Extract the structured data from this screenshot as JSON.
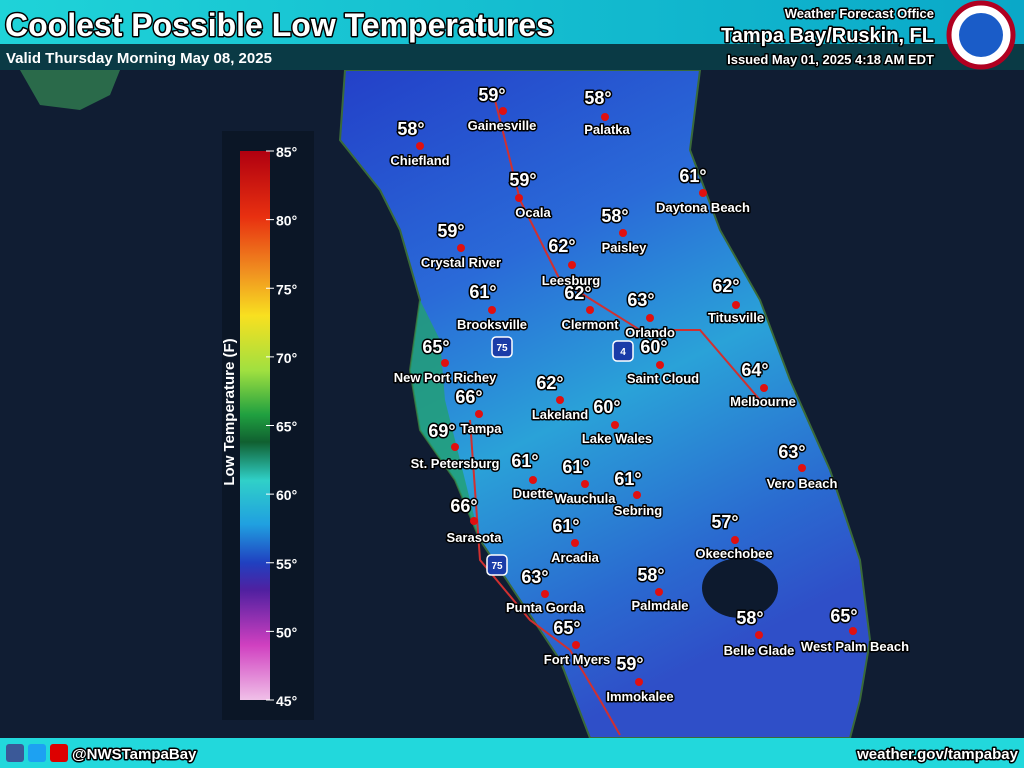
{
  "header": {
    "title": "Coolest Possible Low Temperatures",
    "valid": "Valid Thursday Morning May 08, 2025",
    "office": "Weather Forecast Office",
    "location": "Tampa Bay/Ruskin, FL",
    "issued": "Issued May 01, 2025 4:18 AM EDT"
  },
  "legend": {
    "title": "Low Temperature (F)",
    "ticks": [
      "85°",
      "80°",
      "75°",
      "70°",
      "65°",
      "60°",
      "55°",
      "50°",
      "45°"
    ]
  },
  "cities": [
    {
      "name": "Gainesville",
      "temp": "59°"
    },
    {
      "name": "Palatka",
      "temp": "58°"
    },
    {
      "name": "Chiefland",
      "temp": "58°"
    },
    {
      "name": "Ocala",
      "temp": "59°"
    },
    {
      "name": "Daytona Beach",
      "temp": "61°"
    },
    {
      "name": "Paisley",
      "temp": "58°"
    },
    {
      "name": "Crystal River",
      "temp": "59°"
    },
    {
      "name": "Leesburg",
      "temp": "62°"
    },
    {
      "name": "Clermont",
      "temp": "62°"
    },
    {
      "name": "Orlando",
      "temp": "63°"
    },
    {
      "name": "Titusville",
      "temp": "62°"
    },
    {
      "name": "Brooksville",
      "temp": "61°"
    },
    {
      "name": "New Port Richey",
      "temp": "65°"
    },
    {
      "name": "Saint Cloud",
      "temp": "60°"
    },
    {
      "name": "Melbourne",
      "temp": "64°"
    },
    {
      "name": "Lakeland",
      "temp": "62°"
    },
    {
      "name": "Tampa",
      "temp": "66°"
    },
    {
      "name": "Lake Wales",
      "temp": "60°"
    },
    {
      "name": "St. Petersburg",
      "temp": "69°"
    },
    {
      "name": "Duette",
      "temp": "61°"
    },
    {
      "name": "Wauchula",
      "temp": "61°"
    },
    {
      "name": "Sebring",
      "temp": "61°"
    },
    {
      "name": "Vero Beach",
      "temp": "63°"
    },
    {
      "name": "Sarasota",
      "temp": "66°"
    },
    {
      "name": "Okeechobee",
      "temp": "57°"
    },
    {
      "name": "Arcadia",
      "temp": "61°"
    },
    {
      "name": "Punta Gorda",
      "temp": "63°"
    },
    {
      "name": "Palmdale",
      "temp": "58°"
    },
    {
      "name": "Belle Glade",
      "temp": "58°"
    },
    {
      "name": "West Palm Beach",
      "temp": "65°"
    },
    {
      "name": "Fort Myers",
      "temp": "65°"
    },
    {
      "name": "Immokalee",
      "temp": "59°"
    }
  ],
  "shields": [
    "75",
    "4",
    "75"
  ],
  "footer": {
    "social": "@NWSTampaBay",
    "url": "weather.gov/tampabay"
  }
}
